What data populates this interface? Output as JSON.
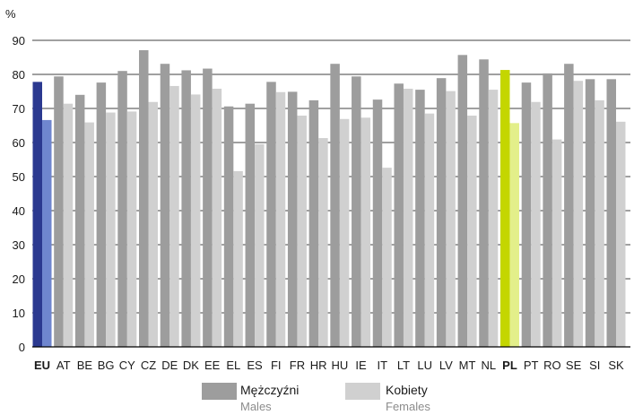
{
  "chart_data": {
    "type": "bar",
    "unit_label": "%",
    "ylim": [
      0,
      90
    ],
    "yticks": [
      0,
      10,
      20,
      30,
      40,
      50,
      60,
      70,
      80,
      90
    ],
    "grid": true,
    "categories": [
      "EU",
      "AT",
      "BE",
      "BG",
      "CY",
      "CZ",
      "DE",
      "DK",
      "EE",
      "EL",
      "ES",
      "FI",
      "FR",
      "HR",
      "HU",
      "IE",
      "IT",
      "LT",
      "LU",
      "LV",
      "MT",
      "NL",
      "PL",
      "PT",
      "RO",
      "SE",
      "SI",
      "SK"
    ],
    "highlighted_categories": [
      "EU",
      "PL"
    ],
    "series": [
      {
        "name": "Mężczyźni",
        "name_en": "Males",
        "color": "#9d9d9d",
        "values": [
          77.8,
          79.4,
          74.0,
          77.6,
          81.0,
          87.1,
          83.1,
          81.2,
          81.7,
          70.6,
          71.4,
          77.8,
          74.9,
          72.4,
          83.1,
          79.4,
          72.6,
          77.3,
          75.5,
          78.9,
          85.7,
          84.4,
          81.3,
          77.6,
          80.3,
          83.1,
          78.6,
          78.6
        ]
      },
      {
        "name": "Kobiety",
        "name_en": "Females",
        "color": "#d0d0d0",
        "values": [
          66.6,
          71.4,
          65.9,
          68.8,
          69.1,
          71.9,
          76.6,
          74.1,
          75.8,
          51.6,
          59.5,
          74.8,
          67.9,
          61.3,
          66.9,
          67.3,
          52.6,
          75.8,
          68.5,
          75.1,
          67.9,
          75.5,
          65.7,
          71.9,
          60.9,
          78.1,
          72.4,
          66.1
        ]
      }
    ],
    "highlight_colors": {
      "EU": [
        "#2b3990",
        "#6f86cf"
      ],
      "PL": [
        "#c4d600",
        "#e3ef8a"
      ]
    },
    "legend_position": "bottom-center"
  }
}
